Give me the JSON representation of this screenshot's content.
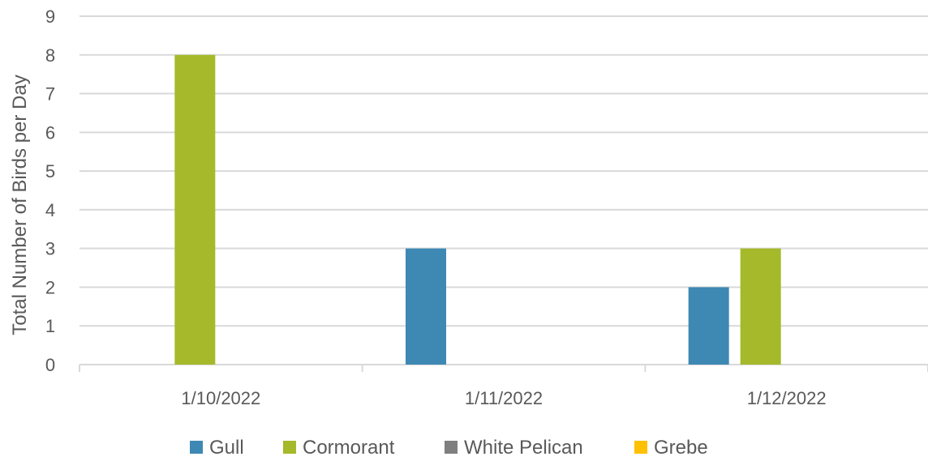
{
  "chart_data": {
    "type": "bar",
    "title": "",
    "xlabel": "",
    "ylabel": "Total Number of Birds per Day",
    "ylim": [
      0,
      9
    ],
    "yticks": [
      0,
      1,
      2,
      3,
      4,
      5,
      6,
      7,
      8,
      9
    ],
    "grid": true,
    "legend_position": "bottom",
    "categories": [
      "1/10/2022",
      "1/11/2022",
      "1/12/2022"
    ],
    "series": [
      {
        "name": "Gull",
        "color": "#3E88B4",
        "values": [
          0,
          3,
          2
        ]
      },
      {
        "name": "Cormorant",
        "color": "#A5B92A",
        "values": [
          8,
          0,
          3
        ]
      },
      {
        "name": "White Pelican",
        "color": "#7F7F7F",
        "values": [
          0,
          0,
          0
        ]
      },
      {
        "name": "Grebe",
        "color": "#FFC000",
        "values": [
          0,
          0,
          0
        ]
      }
    ]
  }
}
